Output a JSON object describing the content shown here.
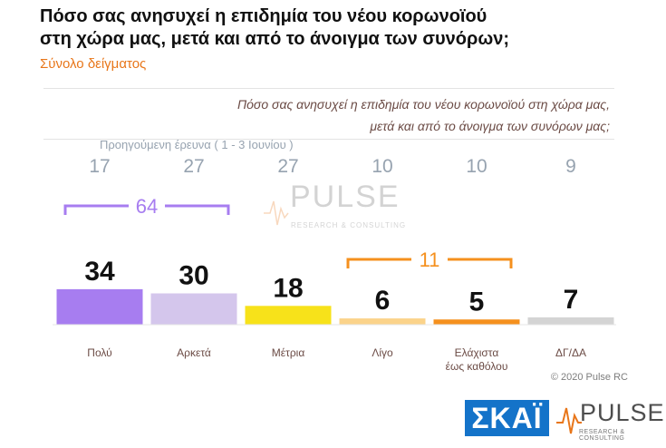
{
  "header": {
    "title_line1": "Πόσο σας ανησυχεί η επιδημία του νέου κορωνοϊού",
    "title_line2": "στη χώρα μας, μετά και από το άνοιγμα των συνόρων;",
    "subtitle": "Σύνολο δείγματος"
  },
  "question": {
    "line1": "Πόσο σας ανησυχεί η επιδημία του νέου κορωνοϊού στη χώρα μας,",
    "line2": "μετά και από το άνοιγμα των συνόρων μας;"
  },
  "chart_data": {
    "type": "bar",
    "categories": [
      "Πολύ",
      "Αρκετά",
      "Μέτρια",
      "Λίγο",
      "Ελάχιστα έως καθόλου",
      "ΔΓ/ΔΑ"
    ],
    "category_lines": [
      [
        "Πολύ"
      ],
      [
        "Αρκετά"
      ],
      [
        "Μέτρια"
      ],
      [
        "Λίγο"
      ],
      [
        "Ελάχιστα",
        "έως καθόλου"
      ],
      [
        "ΔΓ/ΔΑ"
      ]
    ],
    "values": [
      34,
      30,
      18,
      6,
      5,
      7
    ],
    "colors": [
      "#a77df0",
      "#d4c6ec",
      "#f7e21a",
      "#fbd38a",
      "#f5901e",
      "#d4d4d4"
    ],
    "previous_label": "Προηγούμενη έρευνα   ( 1 - 3 Ιουνίου )",
    "previous_values": [
      17,
      27,
      27,
      10,
      10,
      9
    ],
    "group_sums": [
      {
        "label": "64",
        "from": 0,
        "to": 1,
        "color": "#a77df0"
      },
      {
        "label": "11",
        "from": 3,
        "to": 4,
        "color": "#f5901e"
      }
    ],
    "ylim": [
      0,
      40
    ]
  },
  "watermark": {
    "brand": "PULSE",
    "tagline": "RESEARCH & CONSULTING"
  },
  "footer": {
    "copyright": "© 2020 Pulse RC",
    "logo_skai": "ΣΚΑΪ",
    "logo_pulse": "PULSE",
    "logo_pulse_tag": "RESEARCH & CONSULTING"
  }
}
